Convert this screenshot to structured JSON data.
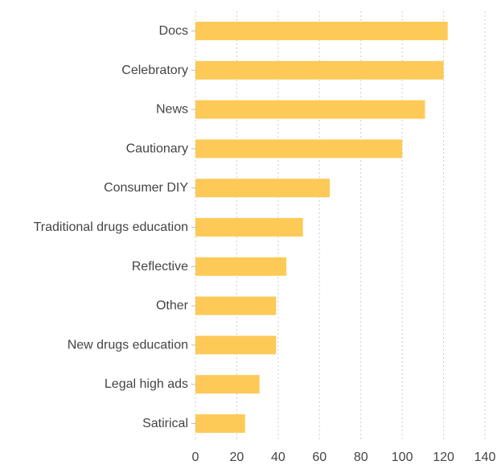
{
  "chart_data": {
    "type": "bar",
    "orientation": "horizontal",
    "title": "",
    "xlabel": "",
    "ylabel": "",
    "categories": [
      "Docs",
      "Celebratory",
      "News",
      "Cautionary",
      "Consumer DIY",
      "Traditional drugs education",
      "Reflective",
      "Other",
      "New drugs education",
      "Legal high ads",
      "Satirical"
    ],
    "values": [
      122,
      120,
      111,
      100,
      65,
      52,
      44,
      39,
      39,
      31,
      24
    ],
    "xlim": [
      0,
      140
    ],
    "xticks": [
      0,
      20,
      40,
      60,
      80,
      100,
      120,
      140
    ],
    "grid": true,
    "legend": "none",
    "bar_color": "#fdc957"
  }
}
